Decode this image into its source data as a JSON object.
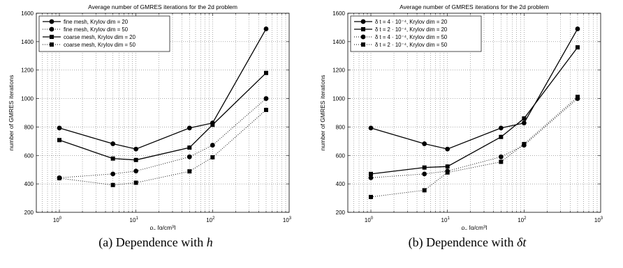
{
  "chart_data": [
    {
      "type": "line",
      "title": "Average number of GMRES iterations for the 2d problem",
      "xlabel": "ρ_s [g/cm³]",
      "ylabel": "number of GMRES iterations",
      "xscale": "log",
      "xlim": [
        0.5,
        1000
      ],
      "ylim": [
        200,
        1600
      ],
      "yticks": [
        200,
        400,
        600,
        800,
        1000,
        1200,
        1400,
        1600
      ],
      "xticks": [
        {
          "value": 1,
          "base": "10",
          "exp": "0"
        },
        {
          "value": 10,
          "base": "10",
          "exp": "1"
        },
        {
          "value": 100,
          "base": "10",
          "exp": "2"
        },
        {
          "value": 1000,
          "base": "10",
          "exp": "3"
        }
      ],
      "grid": true,
      "legend_position": "top-left",
      "x": [
        1,
        5,
        10,
        50,
        100,
        500
      ],
      "series": [
        {
          "name": "fine mesh, Krylov dim = 20",
          "marker": "circle",
          "line": "solid",
          "values": [
            793,
            682,
            645,
            793,
            828,
            1490
          ]
        },
        {
          "name": "fine mesh, Krylov dim = 50",
          "marker": "circle",
          "line": "dotted",
          "values": [
            443,
            470,
            490,
            590,
            672,
            1000
          ]
        },
        {
          "name": "coarse mesh, Krylov dim = 20",
          "marker": "square",
          "line": "solid",
          "values": [
            708,
            578,
            568,
            655,
            815,
            1180
          ]
        },
        {
          "name": "coarse mesh, Krylov dim = 50",
          "marker": "square",
          "line": "dotted",
          "values": [
            440,
            392,
            408,
            488,
            587,
            920
          ]
        }
      ]
    },
    {
      "type": "line",
      "title": "Average number of GMRES iterations for the 2d problem",
      "xlabel": "ρ_s [g/cm³]",
      "ylabel": "number of GMRES iterations",
      "xscale": "log",
      "xlim": [
        0.5,
        1000
      ],
      "ylim": [
        200,
        1600
      ],
      "yticks": [
        200,
        400,
        600,
        800,
        1000,
        1200,
        1400,
        1600
      ],
      "xticks": [
        {
          "value": 1,
          "base": "10",
          "exp": "0"
        },
        {
          "value": 10,
          "base": "10",
          "exp": "1"
        },
        {
          "value": 100,
          "base": "10",
          "exp": "2"
        },
        {
          "value": 1000,
          "base": "10",
          "exp": "3"
        }
      ],
      "grid": true,
      "legend_position": "top-left",
      "x": [
        1,
        5,
        10,
        50,
        100,
        500
      ],
      "series": [
        {
          "name": "δ t = 4 · 10⁻⁴, Krylov dim = 20",
          "marker": "circle",
          "line": "solid",
          "values": [
            793,
            682,
            645,
            793,
            828,
            1490
          ]
        },
        {
          "name": "δ t = 2 · 10⁻⁴, Krylov dim = 20",
          "marker": "square",
          "line": "solid",
          "values": [
            470,
            515,
            522,
            730,
            860,
            1360
          ]
        },
        {
          "name": "δ t = 4 · 10⁻⁴, Krylov dim = 50",
          "marker": "circle",
          "line": "dotted",
          "values": [
            443,
            470,
            490,
            590,
            672,
            1000
          ]
        },
        {
          "name": "δ t = 2 · 10⁻⁴, Krylov dim = 50",
          "marker": "square",
          "line": "dotted",
          "values": [
            308,
            355,
            480,
            555,
            680,
            1012
          ]
        }
      ]
    }
  ],
  "captions": [
    {
      "label": "(a) Dependence with ",
      "symbol": "h"
    },
    {
      "label": "(b) Dependence with ",
      "symbol": "δt"
    }
  ]
}
